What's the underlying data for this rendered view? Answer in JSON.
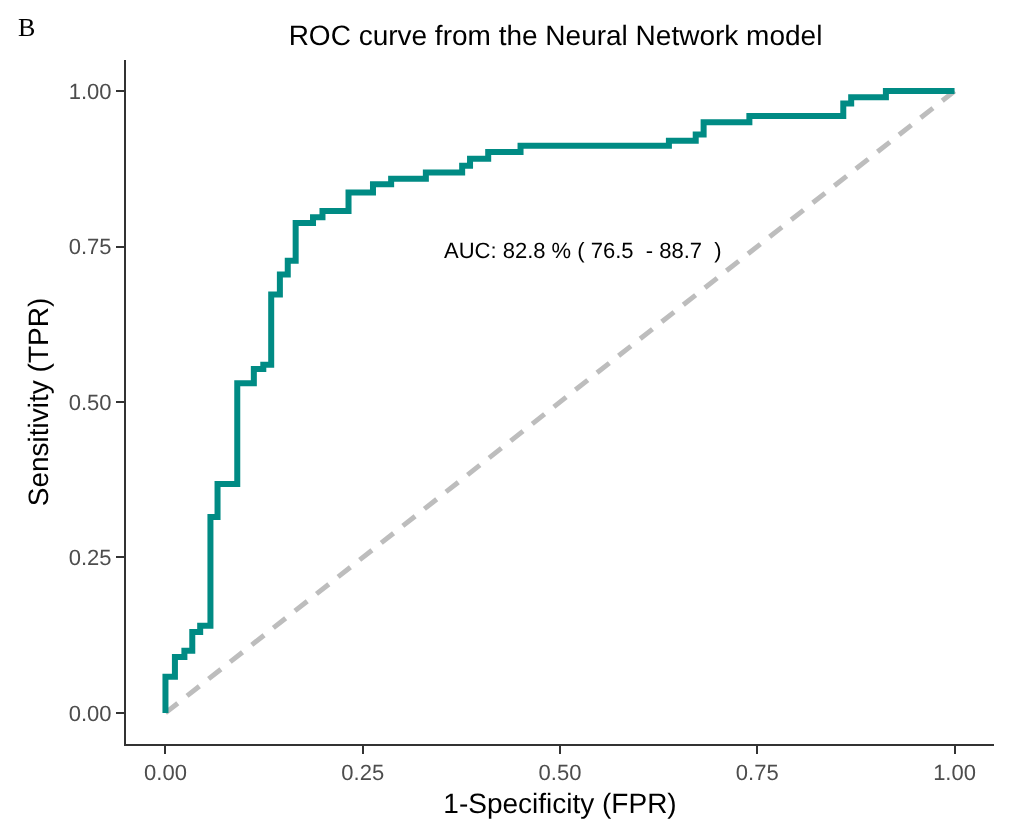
{
  "chart_data": {
    "type": "step",
    "title": "ROC curve from the Neural Network model",
    "xlabel": "1-Specificity (FPR)",
    "ylabel": "Sensitivity (TPR)",
    "annotations": [
      "B",
      "AUC: 82.8 % ( 76.5  - 88.7  )"
    ],
    "series": [
      {
        "color": "#008b84",
        "line_style": "solid",
        "x": [
          0,
          0,
          0.012,
          0.024,
          0.034,
          0.044,
          0.057,
          0.066,
          0.091,
          0.112,
          0.124,
          0.134,
          0.145,
          0.155,
          0.165,
          0.187,
          0.199,
          0.232,
          0.263,
          0.286,
          0.33,
          0.376,
          0.386,
          0.409,
          0.45,
          0.638,
          0.672,
          0.682,
          0.74,
          0.859,
          0.869,
          0.913,
          1
        ],
        "values": [
          0,
          0.058,
          0.09,
          0.1,
          0.13,
          0.14,
          0.315,
          0.368,
          0.53,
          0.553,
          0.56,
          0.673,
          0.705,
          0.727,
          0.788,
          0.797,
          0.807,
          0.837,
          0.85,
          0.859,
          0.869,
          0.88,
          0.891,
          0.902,
          0.912,
          0.92,
          0.93,
          0.95,
          0.96,
          0.98,
          0.99,
          1.0,
          1.0
        ]
      },
      {
        "type": "line",
        "color": "#bdbdbd",
        "line_style": "dashed",
        "x": [
          0,
          1
        ],
        "values": [
          0,
          1
        ]
      }
    ],
    "xlim": [
      -0.05,
      1.05
    ],
    "ylim": [
      -0.05,
      1.05
    ],
    "xticks": [
      {
        "value": 0,
        "label": "0.00"
      },
      {
        "value": 0.25,
        "label": "0.25"
      },
      {
        "value": 0.5,
        "label": "0.50"
      },
      {
        "value": 0.75,
        "label": "0.75"
      },
      {
        "value": 1,
        "label": "1.00"
      }
    ],
    "yticks": [
      {
        "value": 0,
        "label": "0.00"
      },
      {
        "value": 0.25,
        "label": "0.25"
      },
      {
        "value": 0.5,
        "label": "0.50"
      },
      {
        "value": 0.75,
        "label": "0.75"
      },
      {
        "value": 1,
        "label": "1.00"
      }
    ]
  }
}
